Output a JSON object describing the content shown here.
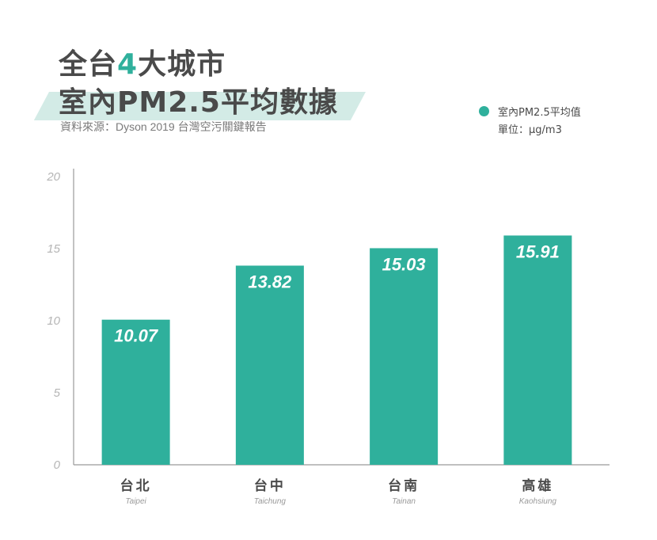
{
  "header": {
    "title_line1_a": "全台",
    "title_line1_b": "4",
    "title_line1_c": "大城市",
    "title_line2": "室內PM2.5平均數據",
    "source": "資料來源：Dyson 2019 台灣空污關鍵報告"
  },
  "legend": {
    "series_label": "室內PM2.5平均值",
    "unit_label": "單位：μg/m3"
  },
  "colors": {
    "bar": "#2fb09c",
    "accent": "#2fb09c",
    "band": "#d3ebe6"
  },
  "chart_data": {
    "type": "bar",
    "categories": [
      "台北",
      "台中",
      "台南",
      "高雄"
    ],
    "categories_en": [
      "Taipei",
      "Taichung",
      "Tainan",
      "Kaohsiung"
    ],
    "series": [
      {
        "name": "室內PM2.5平均值",
        "values": [
          10.07,
          13.82,
          15.03,
          15.91
        ]
      }
    ],
    "value_labels": [
      "10.07",
      "13.82",
      "15.03",
      "15.91"
    ],
    "yticks": [
      0,
      5,
      10,
      15,
      20
    ],
    "ylim": [
      0,
      20
    ],
    "ylabel": "",
    "unit": "μg/m3",
    "grid": false,
    "legend_position": "top-right"
  }
}
